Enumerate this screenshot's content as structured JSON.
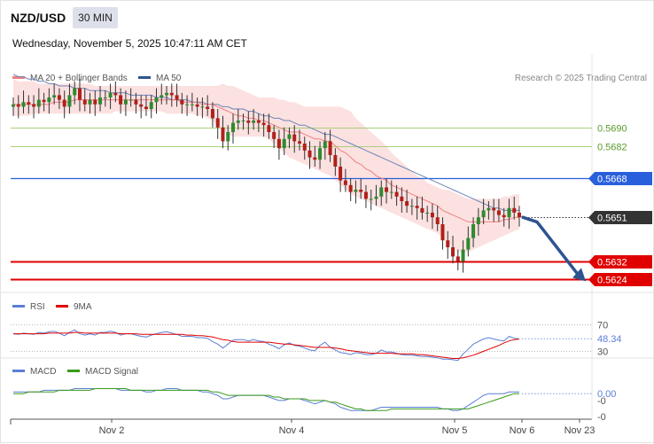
{
  "header": {
    "pair": "NZD/USD",
    "timeframe": "30 MIN",
    "datetime": "Wednesday, November 5, 2025 10:47:11 AM CET"
  },
  "legend": {
    "ma20": {
      "label": "MA 20 + Bollinger Bands",
      "color": "#f08080"
    },
    "ma50": {
      "label": "MA 50",
      "color": "#2d5491"
    },
    "credit": "Research © 2025 Trading Central"
  },
  "rsi_legend": {
    "rsi": {
      "label": "RSI",
      "color": "#5b7fd6"
    },
    "ma9": {
      "label": "9MA",
      "color": "#e00000"
    }
  },
  "macd_legend": {
    "macd": {
      "label": "MACD",
      "color": "#5b7fd6"
    },
    "signal": {
      "label": "MACD Signal",
      "color": "#3a9a1a"
    }
  },
  "chart_data": [
    {
      "type": "candlestick",
      "ylim": [
        0.5618,
        0.5718
      ],
      "x_ticks": [
        "Nov 2",
        "Nov 4",
        "Nov 5",
        "Nov 6",
        "Nov 23"
      ],
      "levels": [
        {
          "value": 0.569,
          "label": "0.5690",
          "color": "#9bc46a",
          "style": "thin",
          "badge": false
        },
        {
          "value": 0.5682,
          "label": "0.5682",
          "color": "#9bc46a",
          "style": "thin",
          "badge": false
        },
        {
          "value": 0.5668,
          "label": "0.5668",
          "color": "#2a5fdc",
          "style": "solid",
          "badge": true
        },
        {
          "value": 0.5651,
          "label": "0.5651",
          "color": "#333333",
          "style": "dotted",
          "badge": true
        },
        {
          "value": 0.5632,
          "label": "0.5632",
          "color": "#e00000",
          "style": "thick",
          "badge": true
        },
        {
          "value": 0.5624,
          "label": "0.5624",
          "color": "#e00000",
          "style": "thick",
          "badge": true
        }
      ],
      "close": [
        0.57,
        0.5699,
        0.5701,
        0.57,
        0.5699,
        0.5702,
        0.5701,
        0.5703,
        0.5704,
        0.5702,
        0.5699,
        0.5704,
        0.5707,
        0.5702,
        0.57,
        0.5702,
        0.57,
        0.5703,
        0.5703,
        0.5705,
        0.5704,
        0.57,
        0.5702,
        0.5702,
        0.57,
        0.5699,
        0.5698,
        0.5701,
        0.5703,
        0.5704,
        0.5705,
        0.5704,
        0.5702,
        0.57,
        0.57,
        0.57,
        0.5699,
        0.5699,
        0.5698,
        0.5694,
        0.569,
        0.5684,
        0.5688,
        0.5692,
        0.5693,
        0.5693,
        0.5692,
        0.5693,
        0.5692,
        0.5691,
        0.5688,
        0.5685,
        0.5681,
        0.5685,
        0.5687,
        0.5684,
        0.5683,
        0.568,
        0.5677,
        0.5676,
        0.5681,
        0.5684,
        0.5678,
        0.5673,
        0.5667,
        0.5665,
        0.5662,
        0.5663,
        0.5662,
        0.5659,
        0.5659,
        0.566,
        0.5664,
        0.5662,
        0.5662,
        0.566,
        0.5658,
        0.5656,
        0.5656,
        0.5655,
        0.5653,
        0.5653,
        0.5651,
        0.5648,
        0.5641,
        0.5638,
        0.5634,
        0.5632,
        0.5637,
        0.5642,
        0.5648,
        0.5651,
        0.5654,
        0.5655,
        0.5654,
        0.5652,
        0.5651,
        0.5655,
        0.5653,
        0.5651
      ],
      "ma20": [
        0.57,
        0.57,
        0.57,
        0.57,
        0.57,
        0.57,
        0.57,
        0.57,
        0.5701,
        0.5701,
        0.5701,
        0.5701,
        0.5702,
        0.5702,
        0.5702,
        0.5702,
        0.5702,
        0.5702,
        0.5702,
        0.5702,
        0.5702,
        0.5702,
        0.5702,
        0.5702,
        0.5702,
        0.5702,
        0.5702,
        0.5702,
        0.5702,
        0.5702,
        0.5702,
        0.5702,
        0.5702,
        0.5701,
        0.5701,
        0.5701,
        0.5701,
        0.57,
        0.57,
        0.57,
        0.5699,
        0.5698,
        0.5697,
        0.5696,
        0.5695,
        0.5695,
        0.5694,
        0.5694,
        0.5693,
        0.5693,
        0.5692,
        0.5691,
        0.569,
        0.5689,
        0.5688,
        0.5688,
        0.5688,
        0.5687,
        0.5686,
        0.5685,
        0.5685,
        0.5684,
        0.5684,
        0.5682,
        0.568,
        0.5679,
        0.5677,
        0.5675,
        0.5674,
        0.5672,
        0.5671,
        0.5669,
        0.5668,
        0.5667,
        0.5665,
        0.5664,
        0.5663,
        0.5662,
        0.5661,
        0.566,
        0.5659,
        0.5658,
        0.5657,
        0.5656,
        0.5654,
        0.5653,
        0.5652,
        0.5651,
        0.565,
        0.5649,
        0.5649,
        0.5649,
        0.5649,
        0.5649,
        0.5649,
        0.5649,
        0.565,
        0.565,
        0.5651,
        0.5651
      ],
      "bb_upper": [
        0.5711,
        0.571,
        0.571,
        0.571,
        0.571,
        0.5709,
        0.5709,
        0.5709,
        0.5709,
        0.5709,
        0.5709,
        0.5709,
        0.5709,
        0.5709,
        0.5709,
        0.5709,
        0.5708,
        0.5708,
        0.5708,
        0.5708,
        0.5708,
        0.5708,
        0.5708,
        0.5708,
        0.5708,
        0.5708,
        0.5708,
        0.5708,
        0.5708,
        0.5708,
        0.5708,
        0.5708,
        0.5708,
        0.5708,
        0.5708,
        0.5708,
        0.5708,
        0.5708,
        0.5708,
        0.5708,
        0.5708,
        0.5709,
        0.5708,
        0.5708,
        0.5707,
        0.5706,
        0.5705,
        0.5704,
        0.5703,
        0.5703,
        0.5703,
        0.5703,
        0.5702,
        0.5702,
        0.5701,
        0.5701,
        0.57,
        0.5699,
        0.5699,
        0.5699,
        0.5699,
        0.5699,
        0.5699,
        0.5699,
        0.5699,
        0.5698,
        0.5697,
        0.5694,
        0.5692,
        0.569,
        0.5688,
        0.5686,
        0.5684,
        0.5682,
        0.5679,
        0.5677,
        0.5675,
        0.5673,
        0.5671,
        0.5669,
        0.5668,
        0.5666,
        0.5665,
        0.5664,
        0.5663,
        0.5663,
        0.5662,
        0.5661,
        0.566,
        0.5659,
        0.5659,
        0.5659,
        0.5659,
        0.5659,
        0.5659,
        0.5659,
        0.566,
        0.566,
        0.5661,
        0.5661
      ],
      "bb_lower": [
        0.5695,
        0.5695,
        0.5695,
        0.5695,
        0.5696,
        0.5696,
        0.5696,
        0.5696,
        0.5696,
        0.5696,
        0.5696,
        0.5696,
        0.5696,
        0.5696,
        0.5696,
        0.5696,
        0.5696,
        0.5696,
        0.5696,
        0.5696,
        0.5697,
        0.5697,
        0.5697,
        0.5697,
        0.5697,
        0.5697,
        0.5697,
        0.5697,
        0.5697,
        0.5697,
        0.5696,
        0.5696,
        0.5696,
        0.5696,
        0.5696,
        0.5696,
        0.5695,
        0.5695,
        0.5694,
        0.5693,
        0.5691,
        0.5689,
        0.5687,
        0.5686,
        0.5686,
        0.5686,
        0.5686,
        0.5686,
        0.5686,
        0.5686,
        0.5685,
        0.5683,
        0.5681,
        0.5679,
        0.5677,
        0.5676,
        0.5675,
        0.5674,
        0.5673,
        0.5672,
        0.5671,
        0.567,
        0.5669,
        0.5667,
        0.5665,
        0.5663,
        0.5661,
        0.566,
        0.5659,
        0.5658,
        0.5657,
        0.5656,
        0.5655,
        0.5654,
        0.5653,
        0.5652,
        0.5651,
        0.565,
        0.5649,
        0.5648,
        0.5647,
        0.5646,
        0.5645,
        0.5644,
        0.5642,
        0.564,
        0.5638,
        0.5636,
        0.5636,
        0.5636,
        0.5637,
        0.5638,
        0.5639,
        0.564,
        0.5641,
        0.5642,
        0.5643,
        0.5644,
        0.5645,
        0.5646
      ],
      "ma50": [
        0.5713,
        0.5712,
        0.5712,
        0.5711,
        0.5711,
        0.571,
        0.571,
        0.5709,
        0.5709,
        0.5708,
        0.5708,
        0.5708,
        0.5707,
        0.5707,
        0.5707,
        0.5706,
        0.5706,
        0.5706,
        0.5706,
        0.5705,
        0.5705,
        0.5705,
        0.5705,
        0.5704,
        0.5704,
        0.5704,
        0.5704,
        0.5704,
        0.5703,
        0.5703,
        0.5703,
        0.5702,
        0.5702,
        0.5702,
        0.5702,
        0.5701,
        0.5701,
        0.5701,
        0.57,
        0.57,
        0.57,
        0.5699,
        0.5699,
        0.5698,
        0.5698,
        0.5698,
        0.5697,
        0.5697,
        0.5696,
        0.5695,
        0.5695,
        0.5694,
        0.5694,
        0.5693,
        0.5693,
        0.5692,
        0.5691,
        0.5691,
        0.569,
        0.5689,
        0.5688,
        0.5687,
        0.5687,
        0.5686,
        0.5685,
        0.5684,
        0.5683,
        0.5682,
        0.5681,
        0.568,
        0.5679,
        0.5678,
        0.5677,
        0.5676,
        0.5675,
        0.5674,
        0.5673,
        0.5672,
        0.5671,
        0.567,
        0.5669,
        0.5668,
        0.5667,
        0.5666,
        0.5665,
        0.5664,
        0.5663,
        0.5662,
        0.5661,
        0.566,
        0.5659,
        0.5658,
        0.5657,
        0.5656,
        0.5655,
        0.5655,
        0.5654,
        0.5654,
        0.5654,
        0.5654
      ],
      "projection": [
        0.5651,
        0.5649,
        0.5624
      ]
    },
    {
      "type": "line",
      "name": "RSI",
      "ylim": [
        20,
        80
      ],
      "levels": [
        70,
        30
      ],
      "level_labels": [
        "70",
        "30"
      ],
      "last_value": 48.34,
      "last_label": "48.34",
      "rsi": [
        56,
        55,
        57,
        56,
        55,
        58,
        57,
        59,
        60,
        57,
        53,
        58,
        62,
        56,
        54,
        56,
        54,
        58,
        58,
        60,
        58,
        54,
        56,
        56,
        54,
        52,
        51,
        54,
        56,
        58,
        59,
        57,
        55,
        52,
        52,
        52,
        50,
        50,
        49,
        44,
        40,
        34,
        40,
        46,
        47,
        47,
        45,
        47,
        45,
        44,
        40,
        37,
        33,
        39,
        42,
        38,
        37,
        34,
        31,
        30,
        38,
        43,
        35,
        31,
        27,
        26,
        24,
        27,
        26,
        24,
        24,
        26,
        31,
        28,
        28,
        26,
        24,
        23,
        23,
        22,
        21,
        21,
        20,
        19,
        17,
        17,
        16,
        15,
        25,
        32,
        40,
        44,
        48,
        50,
        48,
        46,
        45,
        52,
        49,
        48
      ],
      "ma9": [
        56,
        56,
        56,
        56,
        56,
        56,
        56,
        57,
        57,
        57,
        57,
        57,
        58,
        58,
        57,
        57,
        57,
        57,
        57,
        57,
        57,
        56,
        56,
        56,
        56,
        55,
        55,
        55,
        55,
        55,
        55,
        55,
        55,
        55,
        54,
        54,
        53,
        53,
        52,
        51,
        49,
        47,
        46,
        44,
        43,
        43,
        43,
        43,
        43,
        43,
        43,
        42,
        41,
        40,
        40,
        39,
        38,
        37,
        36,
        35,
        35,
        35,
        35,
        34,
        33,
        31,
        30,
        29,
        28,
        27,
        26,
        26,
        26,
        26,
        26,
        25,
        25,
        25,
        25,
        24,
        24,
        23,
        22,
        21,
        20,
        19,
        18,
        18,
        19,
        21,
        23,
        26,
        29,
        32,
        35,
        38,
        42,
        45,
        47,
        48
      ]
    },
    {
      "type": "line",
      "name": "MACD",
      "ylim": [
        -0.0014,
        0.0009
      ],
      "tick_labels": [
        "0.00",
        "-0",
        "-0"
      ],
      "macd": [
        0.0001,
        0.0001,
        0.0001,
        0.0001,
        0.0001,
        0.0001,
        0.0002,
        0.0002,
        0.0002,
        0.0002,
        0.0002,
        0.0002,
        0.0003,
        0.0003,
        0.0003,
        0.0003,
        0.0003,
        0.0003,
        0.0003,
        0.0003,
        0.0003,
        0.0002,
        0.0002,
        0.0002,
        0.0002,
        0.0002,
        0.0001,
        0.0001,
        0.0002,
        0.0002,
        0.0003,
        0.0003,
        0.0003,
        0.0002,
        0.0002,
        0.0002,
        0.0002,
        0.0001,
        0.0001,
        0.0,
        -0.0001,
        -0.0003,
        -0.0003,
        -0.0002,
        -0.0001,
        -0.0001,
        -0.0001,
        -0.0001,
        -0.0001,
        -0.0001,
        -0.0002,
        -0.0003,
        -0.0004,
        -0.0004,
        -0.0003,
        -0.0003,
        -0.0003,
        -0.0004,
        -0.0005,
        -0.0006,
        -0.0005,
        -0.0004,
        -0.0005,
        -0.0006,
        -0.0008,
        -0.0009,
        -0.001,
        -0.001,
        -0.001,
        -0.001,
        -0.001,
        -0.0009,
        -0.0008,
        -0.0008,
        -0.0008,
        -0.0008,
        -0.0008,
        -0.0008,
        -0.0008,
        -0.0008,
        -0.0008,
        -0.0008,
        -0.0008,
        -0.0008,
        -0.0009,
        -0.0009,
        -0.001,
        -0.001,
        -0.0009,
        -0.0007,
        -0.0005,
        -0.0003,
        -0.0001,
        0.0,
        0.0,
        0.0,
        0.0,
        0.0001,
        0.0001,
        0.0001
      ],
      "signal": [
        0.0,
        0.0,
        0.0,
        0.0001,
        0.0001,
        0.0001,
        0.0001,
        0.0001,
        0.0001,
        0.0002,
        0.0002,
        0.0002,
        0.0002,
        0.0002,
        0.0002,
        0.0002,
        0.0003,
        0.0003,
        0.0003,
        0.0003,
        0.0003,
        0.0003,
        0.0003,
        0.0002,
        0.0002,
        0.0002,
        0.0002,
        0.0002,
        0.0002,
        0.0002,
        0.0002,
        0.0002,
        0.0002,
        0.0002,
        0.0002,
        0.0002,
        0.0002,
        0.0002,
        0.0002,
        0.0001,
        0.0001,
        0.0,
        -0.0001,
        -0.0001,
        -0.0001,
        -0.0001,
        -0.0001,
        -0.0001,
        -0.0001,
        -0.0001,
        -0.0001,
        -0.0002,
        -0.0002,
        -0.0003,
        -0.0003,
        -0.0003,
        -0.0003,
        -0.0003,
        -0.0004,
        -0.0004,
        -0.0004,
        -0.0004,
        -0.0005,
        -0.0005,
        -0.0006,
        -0.0007,
        -0.0008,
        -0.0009,
        -0.0009,
        -0.001,
        -0.001,
        -0.001,
        -0.001,
        -0.001,
        -0.0009,
        -0.0009,
        -0.0009,
        -0.0009,
        -0.0009,
        -0.0009,
        -0.0009,
        -0.0009,
        -0.0009,
        -0.0009,
        -0.0009,
        -0.0009,
        -0.0009,
        -0.0009,
        -0.0009,
        -0.0009,
        -0.0008,
        -0.0007,
        -0.0006,
        -0.0005,
        -0.0004,
        -0.0003,
        -0.0002,
        -0.0001,
        0.0,
        0.0
      ]
    }
  ]
}
